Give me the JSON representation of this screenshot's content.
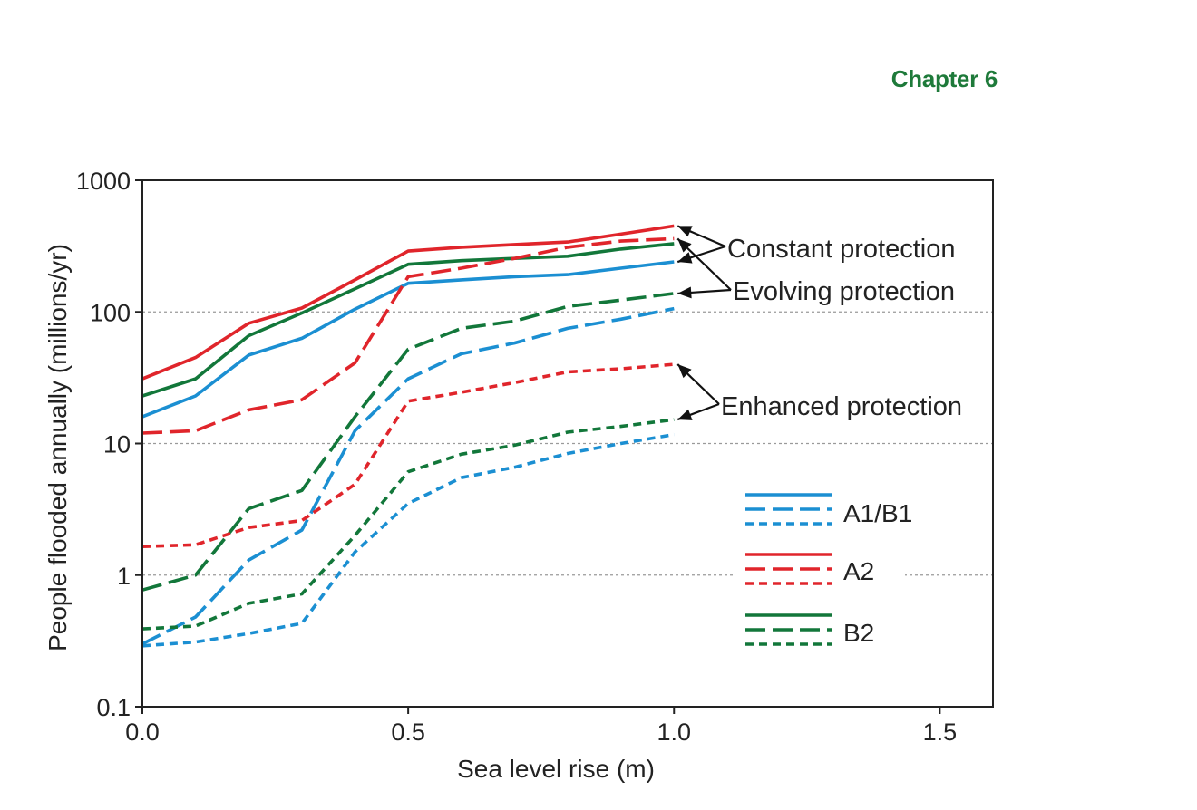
{
  "header": {
    "chapter": "Chapter 6"
  },
  "colors": {
    "A1/B1": "#1b8fd2",
    "A2": "#e0252b",
    "B2": "#12773a",
    "header": "#1e7a3a",
    "rule": "#6aa27e"
  },
  "chart_data": {
    "type": "line",
    "title": "",
    "xlabel": "Sea level rise (m)",
    "ylabel": "People flooded annually (millions/yr)",
    "xlim": [
      0,
      1.6
    ],
    "ylim": [
      0.1,
      1000
    ],
    "yscale": "log",
    "grid": "horizontal dotted at 1, 10, 100",
    "xticks": [
      0,
      0.5,
      1.0,
      1.5
    ],
    "xtick_labels": [
      "0.0",
      "0.5",
      "1.0",
      "1.5"
    ],
    "yticks": [
      0.1,
      1,
      10,
      100,
      1000
    ],
    "ytick_labels": [
      "0.1",
      "1",
      "10",
      "100",
      "1000"
    ],
    "legend": {
      "placement": "bottom-right",
      "entries": [
        {
          "label": "A1/B1",
          "color": "#1b8fd2"
        },
        {
          "label": "A2",
          "color": "#e0252b"
        },
        {
          "label": "B2",
          "color": "#12773a"
        }
      ]
    },
    "annotations": [
      {
        "text": "Constant protection",
        "points_to": "solid lines at 1.0 m"
      },
      {
        "text": "Evolving protection",
        "points_to": "long-dashed lines at 1.0 m"
      },
      {
        "text": "Enhanced protection",
        "points_to": "short-dashed lines at 1.0 m"
      }
    ],
    "x": [
      0.0,
      0.1,
      0.2,
      0.3,
      0.4,
      0.5,
      0.6,
      0.7,
      0.8,
      0.9,
      1.0
    ],
    "series": [
      {
        "scenario": "A2",
        "protection": "constant",
        "dash": "solid",
        "color": "#e0252b",
        "values": [
          31,
          45,
          82,
          107,
          175,
          290,
          310,
          325,
          340,
          390,
          450
        ]
      },
      {
        "scenario": "B2",
        "protection": "constant",
        "dash": "solid",
        "color": "#12773a",
        "values": [
          23,
          31,
          66,
          98,
          150,
          230,
          245,
          255,
          265,
          300,
          330
        ]
      },
      {
        "scenario": "A1/B1",
        "protection": "constant",
        "dash": "solid",
        "color": "#1b8fd2",
        "values": [
          16,
          23,
          47,
          63,
          105,
          165,
          175,
          185,
          192,
          215,
          240
        ]
      },
      {
        "scenario": "A2",
        "protection": "evolving",
        "dash": "long",
        "color": "#e0252b",
        "values": [
          12,
          12.5,
          18,
          21.5,
          41,
          185,
          215,
          255,
          310,
          345,
          360
        ]
      },
      {
        "scenario": "B2",
        "protection": "evolving",
        "dash": "long",
        "color": "#12773a",
        "values": [
          0.77,
          1.0,
          3.2,
          4.4,
          16,
          52,
          75,
          85,
          110,
          123,
          138
        ]
      },
      {
        "scenario": "A1/B1",
        "protection": "evolving",
        "dash": "long",
        "color": "#1b8fd2",
        "values": [
          0.3,
          0.48,
          1.3,
          2.2,
          12.5,
          31,
          48,
          58,
          75,
          88,
          106
        ]
      },
      {
        "scenario": "A2",
        "protection": "enhanced",
        "dash": "short",
        "color": "#e0252b",
        "values": [
          1.65,
          1.7,
          2.3,
          2.6,
          4.9,
          21,
          24.5,
          29,
          35,
          37,
          40
        ]
      },
      {
        "scenario": "B2",
        "protection": "enhanced",
        "dash": "short",
        "color": "#12773a",
        "values": [
          0.39,
          0.41,
          0.61,
          0.72,
          2.0,
          6.1,
          8.3,
          9.7,
          12.2,
          13.5,
          15.2
        ]
      },
      {
        "scenario": "A1/B1",
        "protection": "enhanced",
        "dash": "short",
        "color": "#1b8fd2",
        "values": [
          0.29,
          0.31,
          0.36,
          0.43,
          1.5,
          3.5,
          5.5,
          6.6,
          8.4,
          10,
          11.7
        ]
      }
    ]
  }
}
